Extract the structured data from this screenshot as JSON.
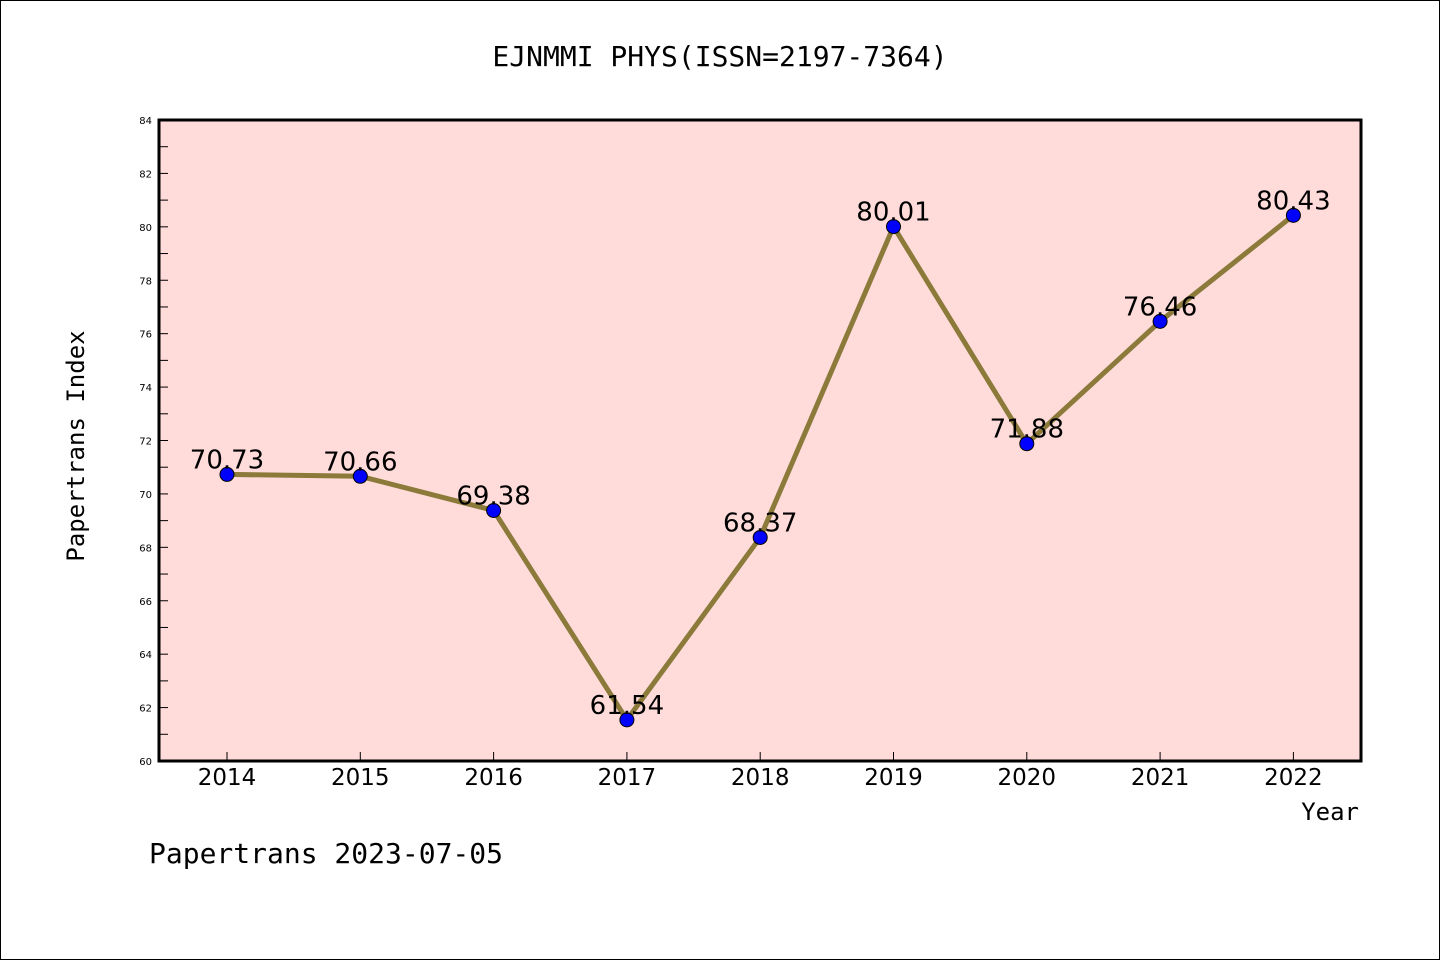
{
  "chart_data": {
    "type": "line",
    "title": "EJNMMI PHYS(ISSN=2197-7364)",
    "xlabel": "Year",
    "ylabel": "Papertrans Index",
    "categories": [
      "2014",
      "2015",
      "2016",
      "2017",
      "2018",
      "2019",
      "2020",
      "2021",
      "2022"
    ],
    "values": [
      70.73,
      70.66,
      69.38,
      61.54,
      68.37,
      80.01,
      71.88,
      76.46,
      80.43
    ],
    "data_labels": [
      "70.73",
      "70.66",
      "69.38",
      "61.54",
      "68.37",
      "80.01",
      "71.88",
      "76.46",
      "80.43"
    ],
    "ylim": [
      60,
      84
    ],
    "yticks": [
      "60",
      "62",
      "64",
      "66",
      "68",
      "70",
      "72",
      "74",
      "76",
      "78",
      "80",
      "82",
      "84"
    ],
    "grid": false,
    "colors": {
      "plot_background": "#FFDCDA",
      "line": "#8B7A3A",
      "marker": "#0000FF"
    }
  },
  "footer": "Papertrans 2023-07-05"
}
